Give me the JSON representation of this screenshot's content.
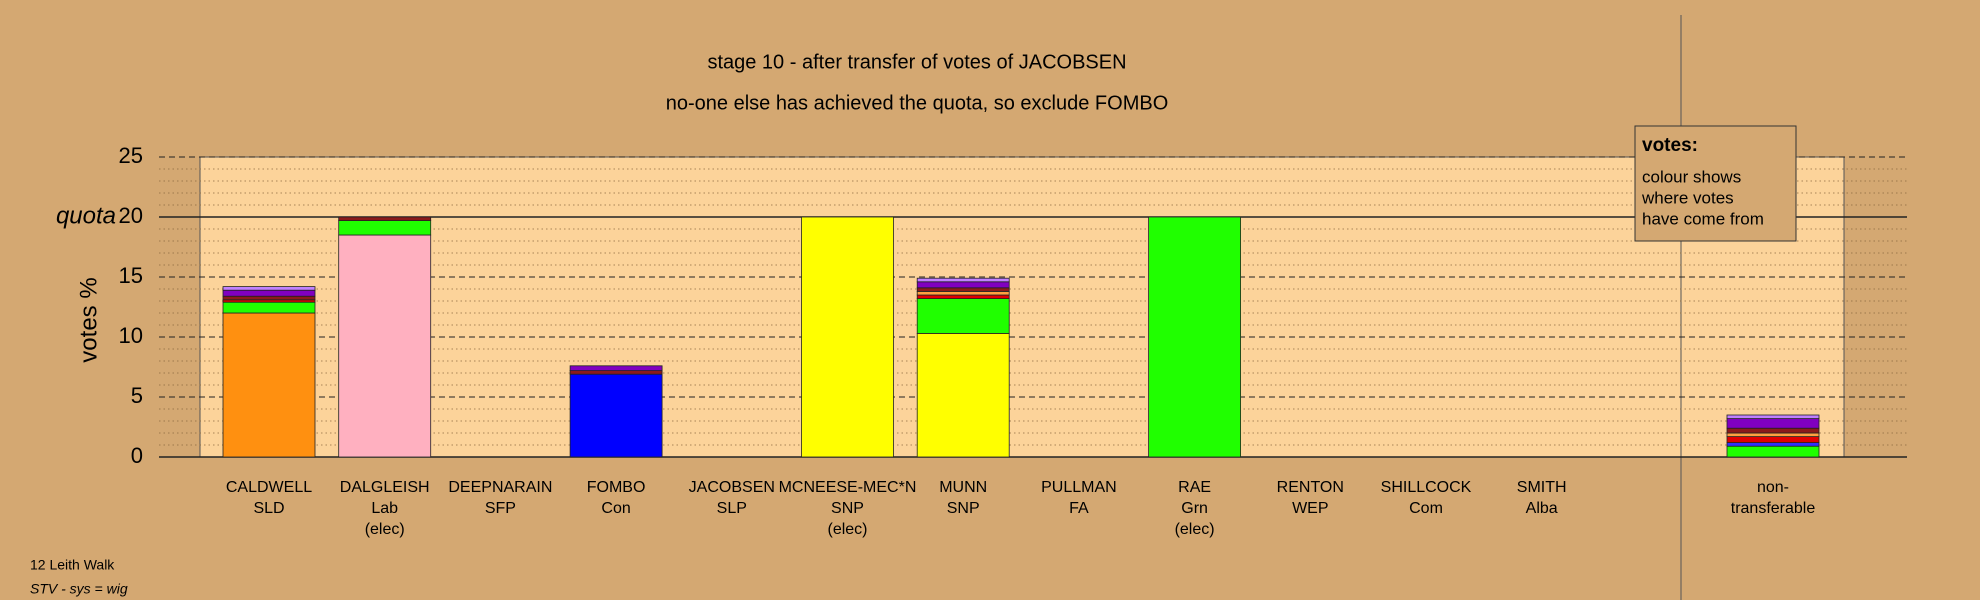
{
  "chart_data": {
    "type": "stacked-bar",
    "title": "stage 10 - after transfer of votes of JACOBSEN",
    "subtitle": "no-one else has achieved the quota, so exclude FOMBO",
    "y_label": "votes %",
    "quota_label": "quota",
    "quota": 20,
    "categories": [
      [
        "CALDWELL",
        "SLD"
      ],
      [
        "DALGLEISH",
        "Lab",
        "(elec)"
      ],
      [
        "DEEPNARAIN",
        "SFP"
      ],
      [
        "FOMBO",
        "Con"
      ],
      [
        "JACOBSEN",
        "SLP"
      ],
      [
        "MCNEESE-MEC*N",
        "SNP",
        "(elec)"
      ],
      [
        "MUNN",
        "SNP"
      ],
      [
        "PULLMAN",
        "FA"
      ],
      [
        "RAE",
        "Grn",
        "(elec)"
      ],
      [
        "RENTON",
        "WEP"
      ],
      [
        "SHILLCOCK",
        "Com"
      ],
      [
        "SMITH",
        "Alba"
      ],
      [
        "non-",
        "transferable"
      ]
    ],
    "series": [
      {
        "color": "#ff9010",
        "values": [
          12.0,
          0,
          0,
          0,
          0,
          0,
          0,
          0,
          0,
          0,
          0,
          0,
          0
        ]
      },
      {
        "color": "#ffb0c0",
        "values": [
          0,
          18.5,
          0,
          0,
          0,
          0,
          0,
          0,
          0,
          0,
          0,
          0,
          0
        ]
      },
      {
        "color": "#0000ff",
        "values": [
          0,
          0,
          0,
          6.9,
          0,
          0,
          0,
          0,
          0,
          0,
          0,
          0,
          0
        ]
      },
      {
        "color": "#ffff00",
        "values": [
          0,
          0,
          0,
          0,
          0,
          20,
          10.3,
          0,
          0,
          0,
          0,
          0,
          0
        ]
      },
      {
        "color": "#20ff00",
        "values": [
          0.9,
          1.2,
          0,
          0,
          0,
          0,
          2.9,
          0,
          20,
          0,
          0,
          0,
          0.9
        ]
      },
      {
        "color": "#3030ff",
        "values": [
          0,
          0,
          0,
          0,
          0,
          0,
          0,
          0,
          0,
          0,
          0,
          0,
          0.3
        ]
      },
      {
        "color": "#e00000",
        "values": [
          0.2,
          0,
          0,
          0,
          0,
          0,
          0.3,
          0,
          0,
          0,
          0,
          0,
          0.5
        ]
      },
      {
        "color": "#ffa040",
        "values": [
          0,
          0,
          0,
          0,
          0,
          0,
          0.3,
          0,
          0,
          0,
          0,
          0,
          0.3
        ]
      },
      {
        "color": "#8b1a1a",
        "values": [
          0.3,
          0.3,
          0,
          0.3,
          0,
          0,
          0.3,
          0,
          0,
          0,
          0,
          0,
          0.4
        ]
      },
      {
        "color": "#8000c0",
        "values": [
          0.5,
          0,
          0,
          0.4,
          0,
          0,
          0.5,
          0,
          0,
          0,
          0,
          0,
          0.8
        ]
      },
      {
        "color": "#c080ff",
        "values": [
          0.3,
          0,
          0,
          0,
          0,
          0,
          0.3,
          0,
          0,
          0,
          0,
          0,
          0.3
        ]
      }
    ],
    "ylim": [
      0,
      25
    ],
    "yticks": [
      0,
      5,
      10,
      15,
      20,
      25
    ],
    "yminor_ticks": [
      1,
      2,
      3,
      4,
      6,
      7,
      8,
      9,
      11,
      12,
      13,
      14,
      16,
      17,
      18,
      19,
      21,
      22,
      23,
      24
    ],
    "legend": {
      "title": "votes:",
      "lines": [
        "colour shows",
        "where votes",
        "have come from"
      ]
    },
    "footer": [
      "12 Leith Walk",
      "STV - sys = wig"
    ]
  }
}
